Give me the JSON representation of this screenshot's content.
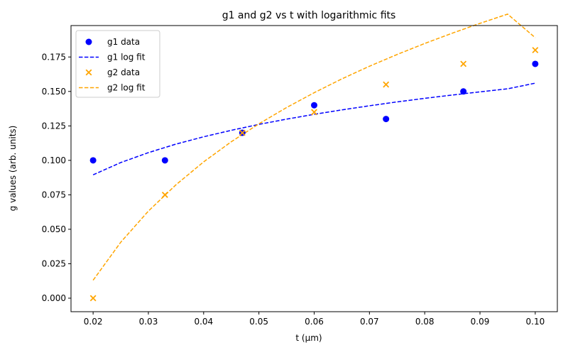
{
  "chart_data": {
    "type": "scatter",
    "title": "g1 and g2 vs t with logarithmic fits",
    "xlabel": "t (μm)",
    "ylabel": "g values (arb. units)",
    "xlim": [
      0.016,
      0.104
    ],
    "ylim": [
      -0.0098,
      0.1978
    ],
    "x_ticks": [
      0.02,
      0.03,
      0.04,
      0.05,
      0.06,
      0.07,
      0.08,
      0.09,
      0.1
    ],
    "x_tick_labels": [
      "0.02",
      "0.03",
      "0.04",
      "0.05",
      "0.06",
      "0.07",
      "0.08",
      "0.09",
      "0.10"
    ],
    "y_ticks": [
      0.0,
      0.025,
      0.05,
      0.075,
      0.1,
      0.125,
      0.15,
      0.175
    ],
    "y_tick_labels": [
      "0.000",
      "0.025",
      "0.050",
      "0.075",
      "0.100",
      "0.125",
      "0.150",
      "0.175"
    ],
    "grid": false,
    "legend_position": "top-left",
    "series": [
      {
        "name": "g1 data",
        "kind": "scatter",
        "marker": "circle",
        "color": "#0000ff",
        "x": [
          0.02,
          0.033,
          0.047,
          0.06,
          0.073,
          0.087,
          0.1
        ],
        "y": [
          0.1,
          0.1,
          0.12,
          0.14,
          0.13,
          0.15,
          0.17
        ]
      },
      {
        "name": "g1 log fit",
        "kind": "line",
        "dash": true,
        "color": "#0000ff",
        "x": [
          0.02,
          0.025,
          0.03,
          0.035,
          0.04,
          0.045,
          0.05,
          0.055,
          0.06,
          0.065,
          0.07,
          0.075,
          0.08,
          0.085,
          0.09,
          0.095,
          0.1
        ],
        "y": [
          0.0895,
          0.0984,
          0.1056,
          0.1118,
          0.1171,
          0.1218,
          0.1261,
          0.1299,
          0.1334,
          0.1366,
          0.1396,
          0.1424,
          0.145,
          0.1474,
          0.1497,
          0.1519,
          0.156
        ]
      },
      {
        "name": "g2 data",
        "kind": "scatter",
        "marker": "x",
        "color": "#ffa500",
        "x": [
          0.02,
          0.033,
          0.047,
          0.06,
          0.073,
          0.087,
          0.1
        ],
        "y": [
          0.0,
          0.075,
          0.12,
          0.135,
          0.155,
          0.17,
          0.18
        ]
      },
      {
        "name": "g2 log fit",
        "kind": "line",
        "dash": true,
        "color": "#ffa500",
        "x": [
          0.02,
          0.025,
          0.03,
          0.035,
          0.04,
          0.045,
          0.05,
          0.055,
          0.06,
          0.065,
          0.07,
          0.075,
          0.08,
          0.085,
          0.09,
          0.095,
          0.1
        ],
        "y": [
          0.013,
          0.0406,
          0.0632,
          0.0823,
          0.0989,
          0.1135,
          0.1265,
          0.1383,
          0.1491,
          0.1591,
          0.1683,
          0.1768,
          0.1848,
          0.1923,
          0.1994,
          0.2061,
          0.189
        ]
      }
    ]
  }
}
